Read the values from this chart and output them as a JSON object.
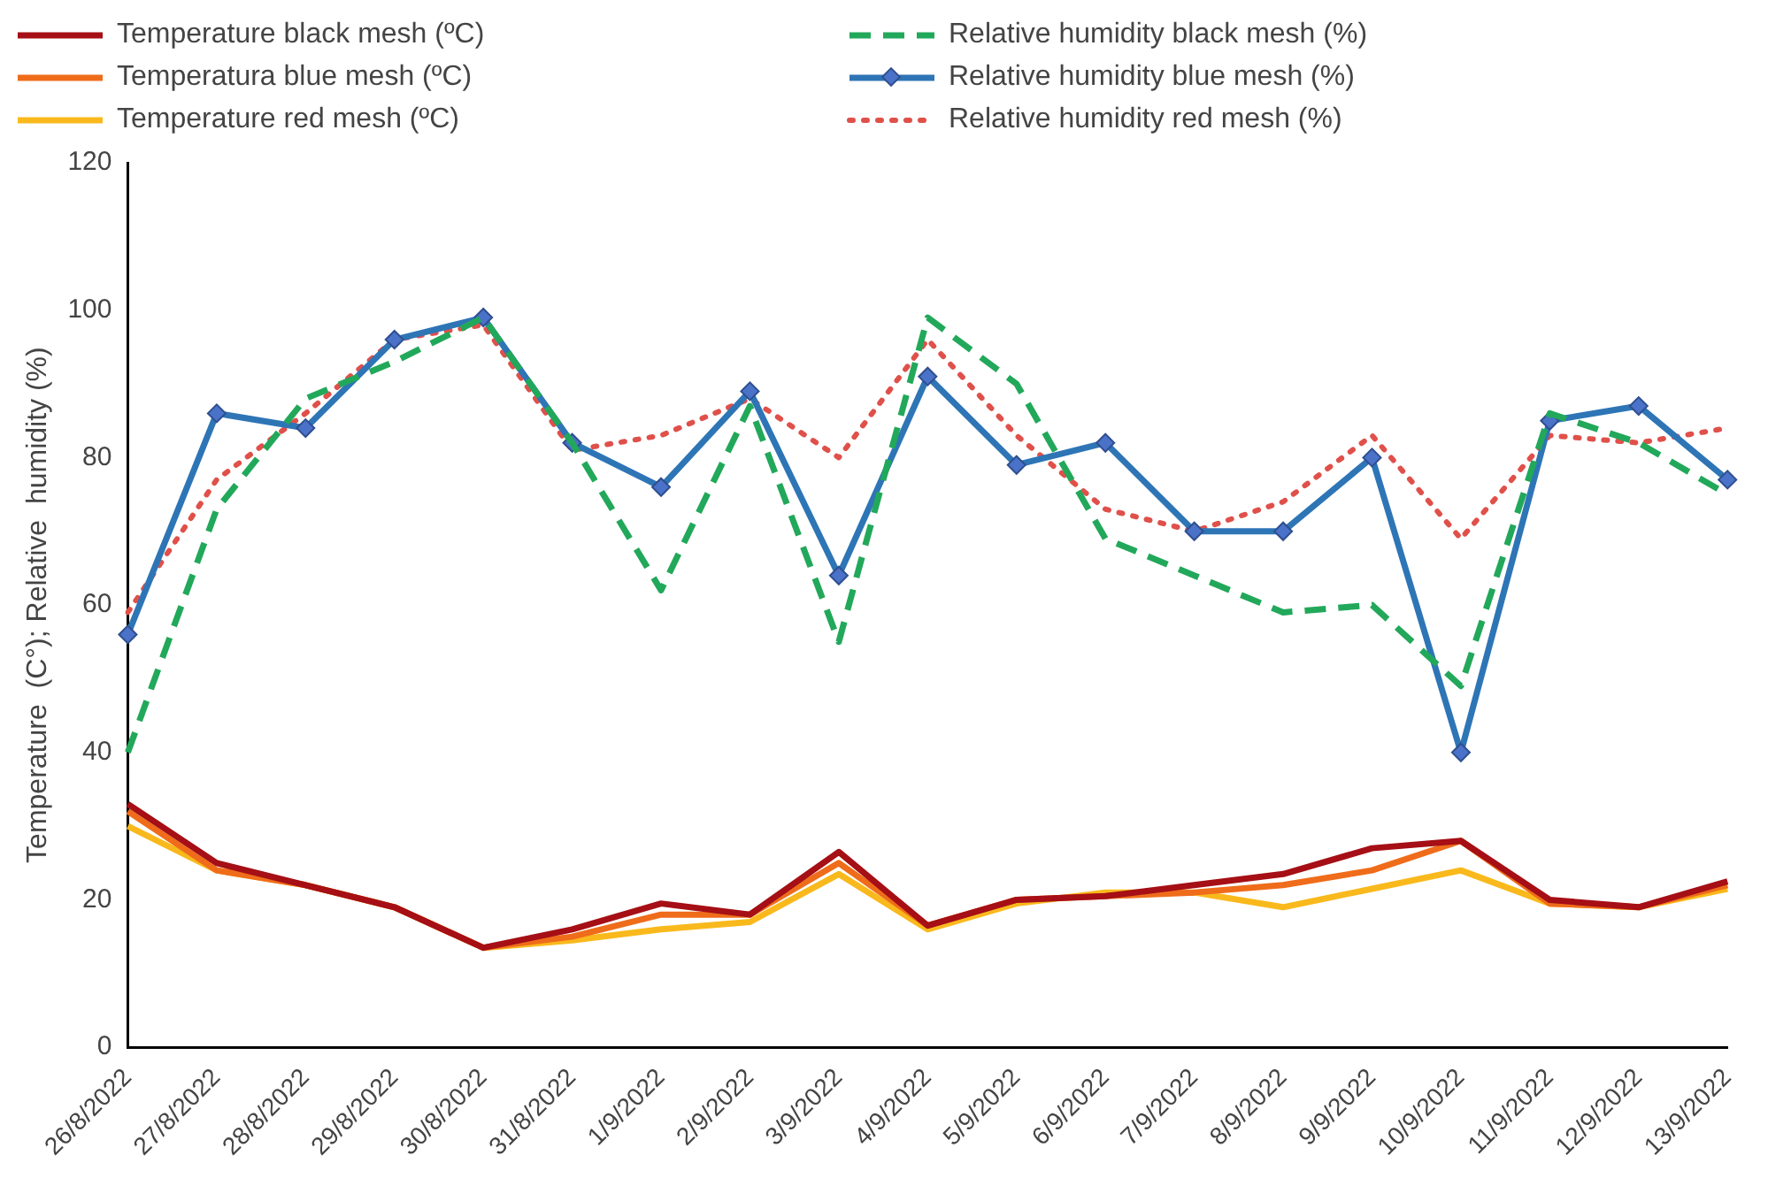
{
  "chart_data": {
    "type": "line",
    "ylabel": "Temperature  (C°); Relative  humidity (%)",
    "categories": [
      "26/8/2022",
      "27/8/2022",
      "28/8/2022",
      "29/8/2022",
      "30/8/2022",
      "31/8/2022",
      "1/9/2022",
      "2/9/2022",
      "3/9/2022",
      "4/9/2022",
      "5/9/2022",
      "6/9/2022",
      "7/9/2022",
      "8/9/2022",
      "9/9/2022",
      "10/9/2022",
      "11/9/2022",
      "12/9/2022",
      "13/9/2022"
    ],
    "series": [
      {
        "name": "Temperature black mesh (ºC)",
        "color": "#a50f15",
        "line_style": "solid",
        "marker": "none",
        "values": [
          33,
          25,
          22,
          19,
          13.5,
          16,
          19.5,
          18,
          26.5,
          16.5,
          20,
          20.5,
          22,
          23.5,
          27,
          28,
          20,
          19,
          22.5
        ]
      },
      {
        "name": "Temperatura blue mesh (ºC)",
        "color": "#ef6c1a",
        "line_style": "solid",
        "marker": "none",
        "values": [
          32,
          24,
          22,
          19,
          13.5,
          15,
          18,
          18,
          25,
          16.5,
          20,
          20.5,
          21,
          22,
          24,
          28,
          19.5,
          19,
          22
        ]
      },
      {
        "name": "Temperature red mesh (ºC)",
        "color": "#f9b91c",
        "line_style": "solid",
        "marker": "none",
        "values": [
          30,
          24,
          22,
          19,
          13.5,
          14.5,
          16,
          17,
          23.5,
          16,
          19.5,
          21,
          21,
          19,
          21.5,
          24,
          19.5,
          19,
          21.5
        ]
      },
      {
        "name": "Relative humidity black mesh (%)",
        "color": "#22a85a",
        "line_style": "dashed",
        "marker": "none",
        "values": [
          40,
          73,
          88,
          93,
          99,
          82,
          62,
          87,
          55,
          99,
          90,
          69,
          64,
          59,
          60,
          49,
          86,
          82,
          75
        ]
      },
      {
        "name": "Relative humidity blue mesh (%)",
        "color": "#2e75b6",
        "line_style": "solid",
        "marker": "diamond",
        "values": [
          56,
          86,
          84,
          96,
          99,
          82,
          76,
          89,
          64,
          91,
          79,
          82,
          70,
          70,
          80,
          40,
          85,
          87,
          77
        ]
      },
      {
        "name": "Relative humidity red mesh (%)",
        "color": "#e0504a",
        "line_style": "dotted",
        "marker": "none",
        "values": [
          59,
          77,
          86,
          96,
          98,
          81,
          83,
          88,
          80,
          96,
          83,
          73,
          70,
          74,
          83,
          69,
          83,
          82,
          84
        ]
      }
    ],
    "ylim": [
      0,
      120
    ],
    "yticks": [
      0,
      20,
      40,
      60,
      80,
      100,
      120
    ],
    "grid": false,
    "legend": "top"
  }
}
